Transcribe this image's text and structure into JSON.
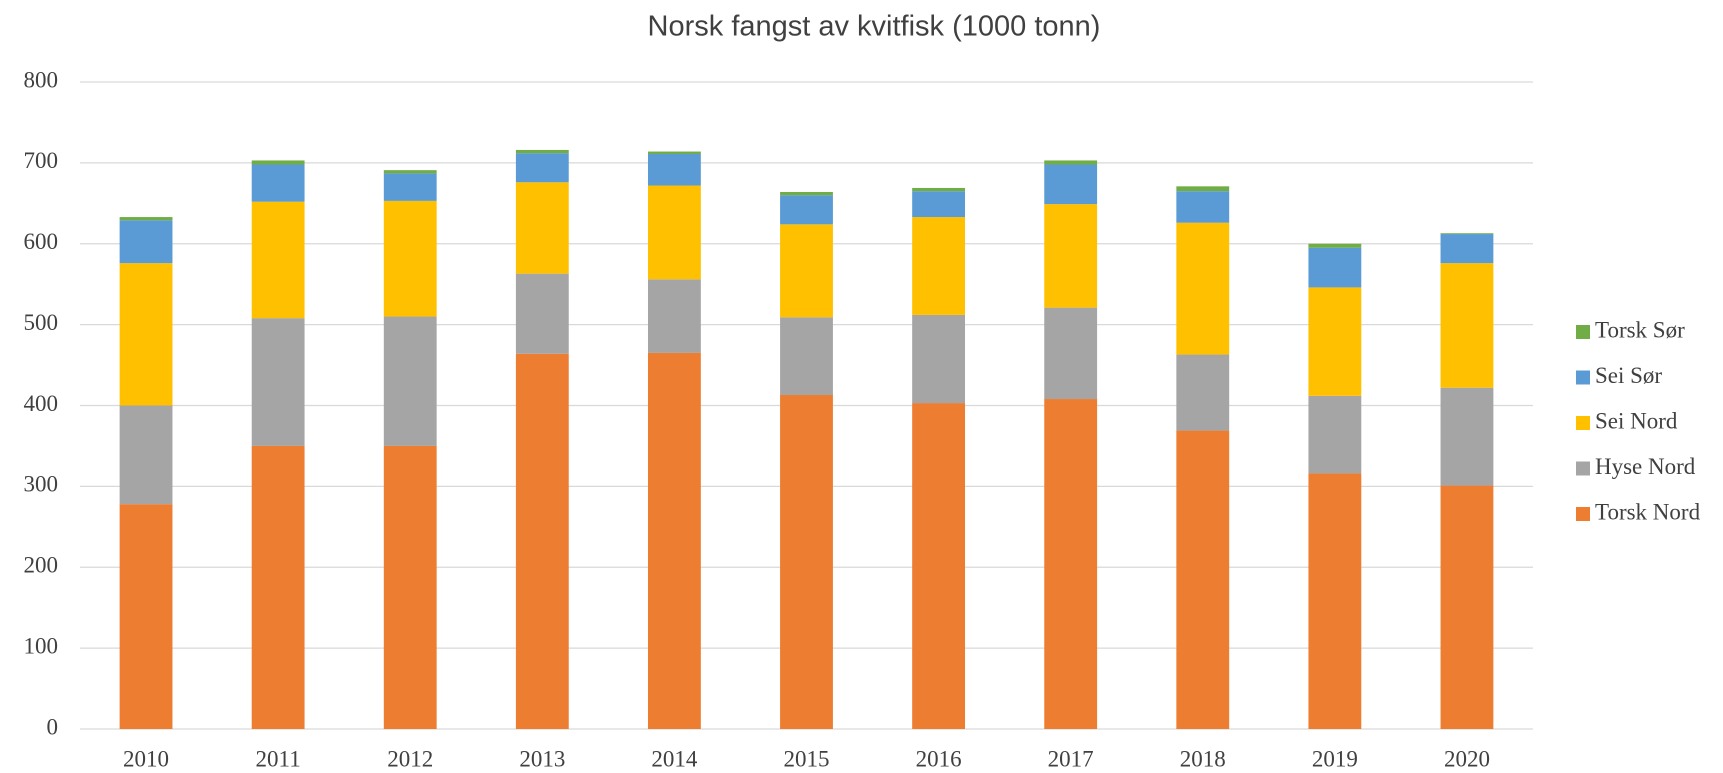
{
  "chart_data": {
    "type": "bar",
    "stacked": true,
    "title": "Norsk fangst av kvitfisk (1000 tonn)",
    "categories": [
      "2010",
      "2011",
      "2012",
      "2013",
      "2014",
      "2015",
      "2016",
      "2017",
      "2018",
      "2019",
      "2020"
    ],
    "series": [
      {
        "name": "Torsk Nord",
        "color": "#ed7d31",
        "values": [
          278,
          350,
          350,
          464,
          465,
          413,
          403,
          408,
          369,
          316,
          301
        ]
      },
      {
        "name": "Hyse Nord",
        "color": "#a5a5a5",
        "values": [
          122,
          158,
          160,
          99,
          91,
          96,
          109,
          113,
          94,
          96,
          121
        ]
      },
      {
        "name": "Sei Nord",
        "color": "#ffc000",
        "values": [
          176,
          144,
          143,
          113,
          116,
          115,
          121,
          128,
          163,
          134,
          154
        ]
      },
      {
        "name": "Sei Sør",
        "color": "#5b9bd5",
        "values": [
          53,
          46,
          34,
          36,
          39,
          36,
          32,
          49,
          39,
          49,
          36
        ]
      },
      {
        "name": "Torsk Sør",
        "color": "#70ad47",
        "values": [
          4,
          5,
          4,
          4,
          3,
          4,
          4,
          5,
          6,
          5,
          1
        ]
      }
    ],
    "ylim": [
      0,
      800
    ],
    "yticks": [
      0,
      100,
      200,
      300,
      400,
      500,
      600,
      700,
      800
    ],
    "grid": true,
    "legend": "right"
  }
}
